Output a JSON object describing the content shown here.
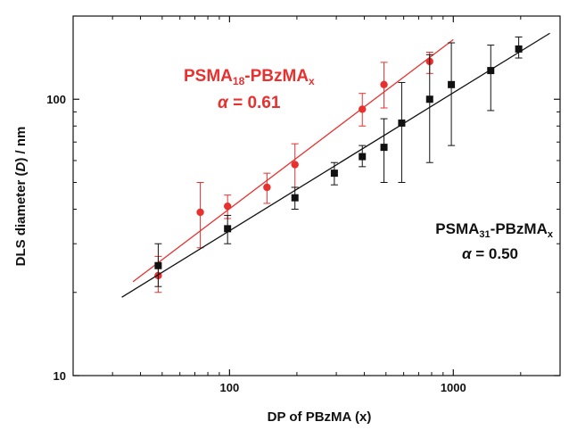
{
  "chart_data": {
    "type": "scatter",
    "xlabel": {
      "prefix": "DP of PBzMA (x)"
    },
    "ylabel": {
      "prefix": "DLS diameter (",
      "italic": "D",
      "suffix": ") / nm"
    },
    "xscale": "log",
    "yscale": "log",
    "xlim": [
      20,
      3000
    ],
    "ylim": [
      10,
      200
    ],
    "xticks": [
      {
        "value": 100,
        "label": "100"
      },
      {
        "value": 1000,
        "label": "1000"
      }
    ],
    "yticks": [
      {
        "value": 10,
        "label": "10"
      },
      {
        "value": 100,
        "label": "100"
      }
    ],
    "grid": false,
    "legend": "none",
    "series": [
      {
        "color": "#e8312f",
        "marker": "circle",
        "fit": {
          "x_start": 37,
          "x_end": 1000
        },
        "annotation": {
          "base": "PSMA",
          "sub1": "18",
          "mid": "-PBzMA",
          "sub2": "x",
          "alpha_symbol": "α",
          "alpha_text": " = 0.61"
        },
        "points": [
          {
            "x": 48,
            "y": 23,
            "err_low": 20,
            "err_high": 27
          },
          {
            "x": 74,
            "y": 39,
            "err_low": 29,
            "err_high": 50
          },
          {
            "x": 98,
            "y": 41,
            "err_low": 37,
            "err_high": 45
          },
          {
            "x": 147,
            "y": 48,
            "err_low": 42,
            "err_high": 54
          },
          {
            "x": 196,
            "y": 58,
            "err_low": 48,
            "err_high": 69
          },
          {
            "x": 392,
            "y": 92,
            "err_low": 80,
            "err_high": 105
          },
          {
            "x": 490,
            "y": 113,
            "err_low": 93,
            "err_high": 136
          },
          {
            "x": 784,
            "y": 137,
            "err_low": 124,
            "err_high": 148
          }
        ]
      },
      {
        "color": "#111111",
        "marker": "square",
        "fit": {
          "x_start": 33,
          "x_end": 2700
        },
        "annotation": {
          "base": "PSMA",
          "sub1": "31",
          "mid": "-PBzMA",
          "sub2": "x",
          "alpha_symbol": "α",
          "alpha_text": " = 0.50"
        },
        "points": [
          {
            "x": 48,
            "y": 25,
            "err_low": 21,
            "err_high": 30
          },
          {
            "x": 98,
            "y": 34,
            "err_low": 30,
            "err_high": 38
          },
          {
            "x": 196,
            "y": 44,
            "err_low": 40,
            "err_high": 48
          },
          {
            "x": 294,
            "y": 54,
            "err_low": 49,
            "err_high": 59
          },
          {
            "x": 392,
            "y": 62,
            "err_low": 57,
            "err_high": 68
          },
          {
            "x": 490,
            "y": 67,
            "err_low": 50,
            "err_high": 85
          },
          {
            "x": 588,
            "y": 82,
            "err_low": 50,
            "err_high": 115
          },
          {
            "x": 784,
            "y": 100,
            "err_low": 59,
            "err_high": 145
          },
          {
            "x": 980,
            "y": 113,
            "err_low": 68,
            "err_high": 160
          },
          {
            "x": 1470,
            "y": 127,
            "err_low": 91,
            "err_high": 157
          },
          {
            "x": 1960,
            "y": 152,
            "err_low": 141,
            "err_high": 168
          }
        ]
      }
    ]
  }
}
